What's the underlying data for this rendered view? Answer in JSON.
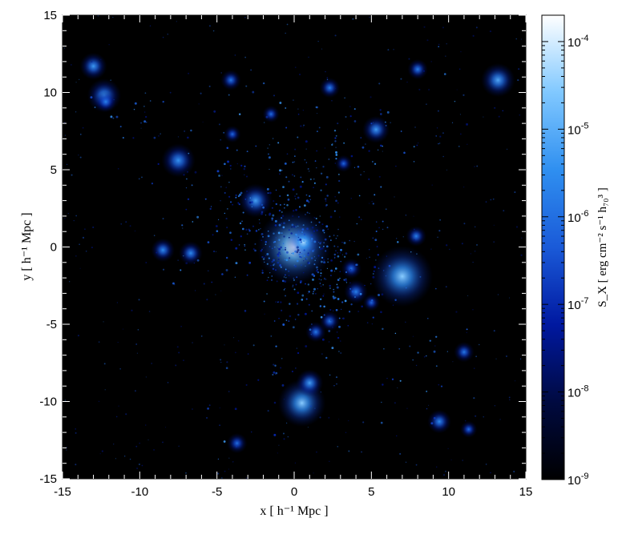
{
  "chart_data": {
    "type": "heatmap",
    "title": "",
    "xlabel": "x [ h⁻¹ Mpc ]",
    "ylabel": "y [ h⁻¹ Mpc ]",
    "xlim": [
      -15,
      15
    ],
    "ylim": [
      -15,
      15
    ],
    "xticks": [
      -15,
      -10,
      -5,
      0,
      5,
      10,
      15
    ],
    "yticks": [
      -15,
      -10,
      -5,
      0,
      5,
      10,
      15
    ],
    "xtick_labels": [
      "-15",
      "-10",
      "-5",
      "0",
      "5",
      "10",
      "15"
    ],
    "ytick_labels": [
      "-15",
      "-10",
      "-5",
      "0",
      "5",
      "10",
      "15"
    ],
    "grid": false,
    "colormap": [
      "#000000",
      "#000a40",
      "#0018a0",
      "#1a5ad8",
      "#2f8ff0",
      "#80c8ff",
      "#ffffff"
    ],
    "colorbar": {
      "label": "S_X [ erg cm⁻² s⁻¹ h₇₀³ ]",
      "scale": "log",
      "range": [
        1e-09,
        0.0002
      ],
      "ticks": [
        1e-09,
        1e-08,
        1e-07,
        1e-06,
        1e-05,
        0.0001
      ],
      "tick_labels": [
        {
          "base": "10",
          "exp": "-9"
        },
        {
          "base": "10",
          "exp": "-8"
        },
        {
          "base": "10",
          "exp": "-7"
        },
        {
          "base": "10",
          "exp": "-6"
        },
        {
          "base": "10",
          "exp": "-5"
        },
        {
          "base": "10",
          "exp": "-4"
        }
      ]
    },
    "sources": [
      {
        "x": 0,
        "y": 0,
        "peak": 0.0002,
        "r": 1.1
      },
      {
        "x": 0.6,
        "y": 0.3,
        "peak": 5e-05,
        "r": 0.5
      },
      {
        "x": 7,
        "y": -1.9,
        "peak": 3e-05,
        "r": 0.9
      },
      {
        "x": 0.5,
        "y": -10.1,
        "peak": 3e-05,
        "r": 0.7
      },
      {
        "x": 1.0,
        "y": -8.8,
        "peak": 6e-06,
        "r": 0.4
      },
      {
        "x": -2.5,
        "y": 3.0,
        "peak": 6e-06,
        "r": 0.5
      },
      {
        "x": -7.5,
        "y": 5.6,
        "peak": 4e-06,
        "r": 0.5
      },
      {
        "x": 5.3,
        "y": 7.6,
        "peak": 5e-06,
        "r": 0.4
      },
      {
        "x": 13.2,
        "y": 10.8,
        "peak": 8e-06,
        "r": 0.5
      },
      {
        "x": -13.0,
        "y": 11.7,
        "peak": 5e-06,
        "r": 0.4
      },
      {
        "x": -12.3,
        "y": 9.8,
        "peak": 5e-06,
        "r": 0.5
      },
      {
        "x": 2.3,
        "y": 10.3,
        "peak": 2e-06,
        "r": 0.3
      },
      {
        "x": -4.1,
        "y": 10.8,
        "peak": 1.5e-06,
        "r": 0.3
      },
      {
        "x": 8.0,
        "y": 11.5,
        "peak": 2e-06,
        "r": 0.3
      },
      {
        "x": -8.5,
        "y": -0.2,
        "peak": 3e-06,
        "r": 0.35
      },
      {
        "x": -6.7,
        "y": -0.4,
        "peak": 3e-06,
        "r": 0.35
      },
      {
        "x": 9.4,
        "y": -11.3,
        "peak": 3e-06,
        "r": 0.35
      },
      {
        "x": 4.0,
        "y": -2.9,
        "peak": 2e-06,
        "r": 0.35
      },
      {
        "x": 7.9,
        "y": 0.7,
        "peak": 2e-06,
        "r": 0.3
      },
      {
        "x": 1.4,
        "y": -5.5,
        "peak": 1.5e-06,
        "r": 0.3
      },
      {
        "x": 11.0,
        "y": -6.8,
        "peak": 1.5e-06,
        "r": 0.3
      },
      {
        "x": -3.7,
        "y": -12.7,
        "peak": 1e-06,
        "r": 0.3
      },
      {
        "x": 2.3,
        "y": -4.8,
        "peak": 1.5e-06,
        "r": 0.3
      },
      {
        "x": -1.5,
        "y": 8.6,
        "peak": 1e-06,
        "r": 0.25
      },
      {
        "x": 3.7,
        "y": -1.4,
        "peak": 1e-06,
        "r": 0.3
      },
      {
        "x": 11.3,
        "y": -11.8,
        "peak": 1e-06,
        "r": 0.25
      },
      {
        "x": -4.0,
        "y": 7.3,
        "peak": 8e-07,
        "r": 0.25
      },
      {
        "x": 3.2,
        "y": 5.4,
        "peak": 8e-07,
        "r": 0.25
      },
      {
        "x": -12.2,
        "y": 9.4,
        "peak": 2e-06,
        "r": 0.3
      },
      {
        "x": 5.0,
        "y": -3.6,
        "peak": 8e-07,
        "r": 0.25
      }
    ]
  }
}
